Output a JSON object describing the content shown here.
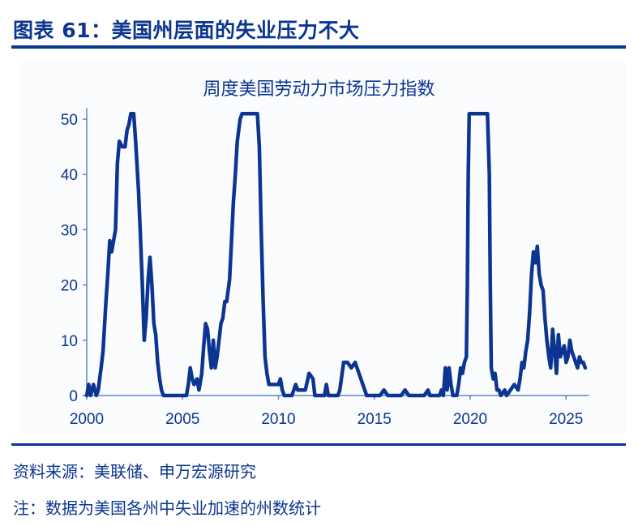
{
  "header": {
    "title": "图表 61：美国州层面的失业压力不大"
  },
  "chart_data": {
    "type": "line",
    "title": "周度美国劳动力市场压力指数",
    "xlabel": "",
    "ylabel": "",
    "xlim": [
      2000,
      2026.2
    ],
    "ylim": [
      0,
      51
    ],
    "x_ticks": [
      "2000",
      "2005",
      "2010",
      "2015",
      "2020",
      "2025"
    ],
    "y_ticks": [
      "0",
      "10",
      "20",
      "30",
      "40",
      "50"
    ],
    "grid": false,
    "legend": null,
    "color": "#0b3590",
    "series": [
      {
        "name": "周度美国劳动力市场压力指数",
        "points": [
          [
            2000.0,
            0
          ],
          [
            2000.1,
            2
          ],
          [
            2000.2,
            0
          ],
          [
            2000.35,
            2
          ],
          [
            2000.5,
            0
          ],
          [
            2000.6,
            1
          ],
          [
            2000.75,
            5
          ],
          [
            2000.85,
            8
          ],
          [
            2001.0,
            17
          ],
          [
            2001.1,
            22
          ],
          [
            2001.2,
            28
          ],
          [
            2001.3,
            26
          ],
          [
            2001.4,
            28
          ],
          [
            2001.5,
            30
          ],
          [
            2001.6,
            42
          ],
          [
            2001.7,
            46
          ],
          [
            2001.85,
            45
          ],
          [
            2002.0,
            45
          ],
          [
            2002.1,
            48
          ],
          [
            2002.2,
            49
          ],
          [
            2002.3,
            51
          ],
          [
            2002.45,
            51
          ],
          [
            2002.55,
            46
          ],
          [
            2002.7,
            37
          ],
          [
            2002.8,
            29
          ],
          [
            2002.9,
            20
          ],
          [
            2003.0,
            10
          ],
          [
            2003.1,
            14
          ],
          [
            2003.2,
            21
          ],
          [
            2003.3,
            25
          ],
          [
            2003.4,
            20
          ],
          [
            2003.5,
            13
          ],
          [
            2003.6,
            11
          ],
          [
            2003.7,
            6
          ],
          [
            2003.8,
            3
          ],
          [
            2003.9,
            1
          ],
          [
            2004.0,
            0
          ],
          [
            2005.0,
            0
          ],
          [
            2005.2,
            0
          ],
          [
            2005.3,
            2
          ],
          [
            2005.4,
            5
          ],
          [
            2005.5,
            3
          ],
          [
            2005.6,
            2
          ],
          [
            2005.75,
            3
          ],
          [
            2005.85,
            1
          ],
          [
            2006.0,
            4
          ],
          [
            2006.1,
            9
          ],
          [
            2006.2,
            13
          ],
          [
            2006.3,
            12
          ],
          [
            2006.4,
            8
          ],
          [
            2006.5,
            5
          ],
          [
            2006.6,
            10
          ],
          [
            2006.7,
            5
          ],
          [
            2006.8,
            7
          ],
          [
            2006.9,
            10
          ],
          [
            2007.0,
            13
          ],
          [
            2007.1,
            14
          ],
          [
            2007.2,
            17
          ],
          [
            2007.3,
            17
          ],
          [
            2007.45,
            21
          ],
          [
            2007.55,
            28
          ],
          [
            2007.65,
            35
          ],
          [
            2007.75,
            40
          ],
          [
            2007.85,
            46
          ],
          [
            2008.0,
            50
          ],
          [
            2008.1,
            51
          ],
          [
            2008.9,
            51
          ],
          [
            2009.0,
            45
          ],
          [
            2009.1,
            30
          ],
          [
            2009.2,
            17
          ],
          [
            2009.3,
            7
          ],
          [
            2009.4,
            4
          ],
          [
            2009.5,
            2
          ],
          [
            2010.0,
            2
          ],
          [
            2010.1,
            3
          ],
          [
            2010.2,
            1
          ],
          [
            2010.3,
            0
          ],
          [
            2010.7,
            0
          ],
          [
            2010.9,
            2
          ],
          [
            2011.0,
            1
          ],
          [
            2011.2,
            1
          ],
          [
            2011.4,
            1
          ],
          [
            2011.6,
            4
          ],
          [
            2011.8,
            3
          ],
          [
            2011.9,
            0
          ],
          [
            2012.4,
            0
          ],
          [
            2012.5,
            2
          ],
          [
            2012.6,
            0
          ],
          [
            2013.1,
            0
          ],
          [
            2013.2,
            1
          ],
          [
            2013.4,
            6
          ],
          [
            2013.6,
            6
          ],
          [
            2013.8,
            5
          ],
          [
            2014.0,
            6
          ],
          [
            2014.2,
            4
          ],
          [
            2014.4,
            2
          ],
          [
            2014.6,
            0
          ],
          [
            2015.0,
            0
          ],
          [
            2015.3,
            0
          ],
          [
            2015.5,
            1
          ],
          [
            2015.7,
            0
          ],
          [
            2016.4,
            0
          ],
          [
            2016.6,
            1
          ],
          [
            2016.8,
            0
          ],
          [
            2017.6,
            0
          ],
          [
            2017.8,
            1
          ],
          [
            2017.9,
            0
          ],
          [
            2018.4,
            0
          ],
          [
            2018.5,
            1
          ],
          [
            2018.6,
            0
          ],
          [
            2018.7,
            5
          ],
          [
            2018.8,
            1
          ],
          [
            2018.9,
            5
          ],
          [
            2019.0,
            2
          ],
          [
            2019.1,
            0
          ],
          [
            2019.3,
            0
          ],
          [
            2019.4,
            2
          ],
          [
            2019.5,
            5
          ],
          [
            2019.6,
            4
          ],
          [
            2019.7,
            6
          ],
          [
            2019.8,
            7
          ],
          [
            2019.85,
            20
          ],
          [
            2019.9,
            40
          ],
          [
            2019.95,
            51
          ],
          [
            2020.9,
            51
          ],
          [
            2021.0,
            40
          ],
          [
            2021.05,
            20
          ],
          [
            2021.1,
            5
          ],
          [
            2021.2,
            3
          ],
          [
            2021.3,
            4
          ],
          [
            2021.4,
            1
          ],
          [
            2021.5,
            1
          ],
          [
            2021.6,
            0
          ],
          [
            2021.8,
            1
          ],
          [
            2021.9,
            0
          ],
          [
            2022.1,
            1
          ],
          [
            2022.3,
            2
          ],
          [
            2022.5,
            1
          ],
          [
            2022.6,
            3
          ],
          [
            2022.7,
            6
          ],
          [
            2022.8,
            5
          ],
          [
            2022.9,
            8
          ],
          [
            2023.0,
            10
          ],
          [
            2023.1,
            15
          ],
          [
            2023.2,
            22
          ],
          [
            2023.3,
            26
          ],
          [
            2023.4,
            24
          ],
          [
            2023.5,
            27
          ],
          [
            2023.6,
            22
          ],
          [
            2023.7,
            20
          ],
          [
            2023.8,
            19
          ],
          [
            2023.9,
            14
          ],
          [
            2024.0,
            10
          ],
          [
            2024.1,
            7
          ],
          [
            2024.2,
            5
          ],
          [
            2024.3,
            12
          ],
          [
            2024.4,
            8
          ],
          [
            2024.5,
            4
          ],
          [
            2024.6,
            11
          ],
          [
            2024.7,
            7
          ],
          [
            2024.8,
            8
          ],
          [
            2024.9,
            9
          ],
          [
            2025.0,
            6
          ],
          [
            2025.1,
            7
          ],
          [
            2025.2,
            10
          ],
          [
            2025.3,
            8
          ],
          [
            2025.4,
            7
          ],
          [
            2025.5,
            6
          ],
          [
            2025.6,
            5
          ],
          [
            2025.7,
            7
          ],
          [
            2025.8,
            6
          ],
          [
            2025.9,
            6
          ],
          [
            2026.0,
            5
          ]
        ]
      }
    ]
  },
  "footer": {
    "source": "资料来源：美联储、申万宏源研究",
    "note": "注：数据为美国各州中失业加速的州数统计"
  }
}
